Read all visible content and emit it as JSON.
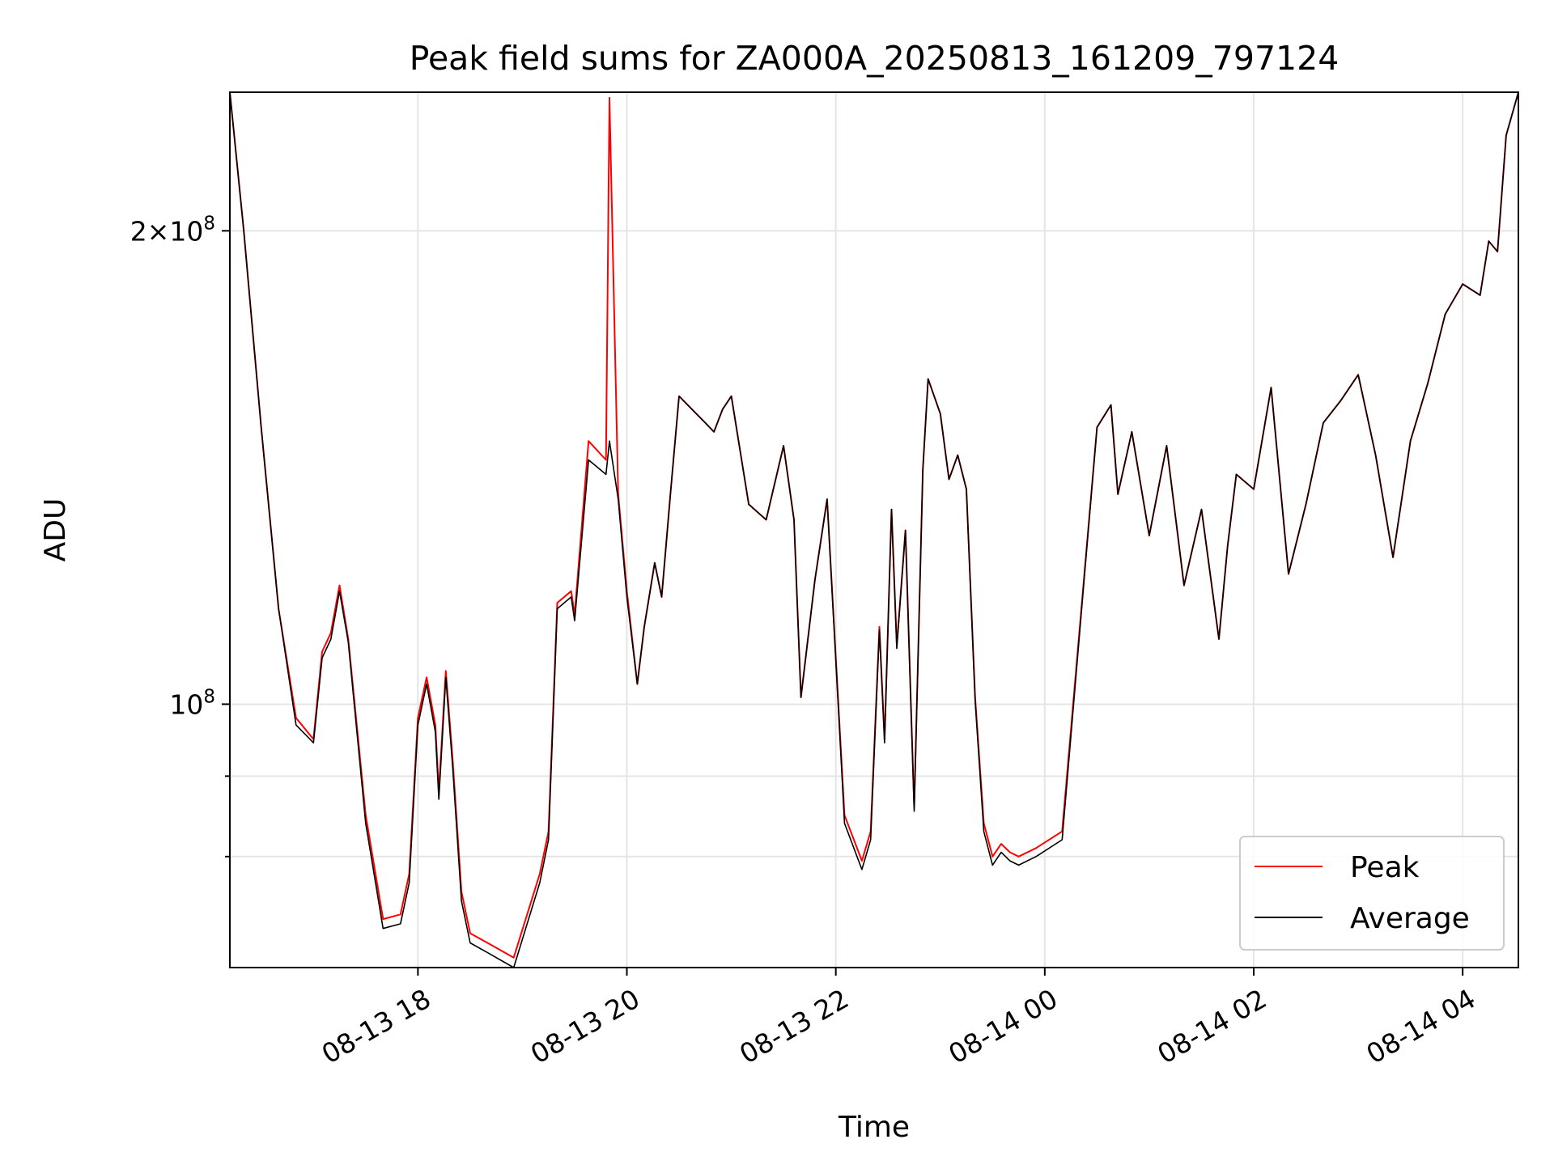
{
  "chart_data": {
    "type": "line",
    "title": "Peak field sums for ZA000A_20250813_161209_797124",
    "xlabel": "Time",
    "ylabel": "ADU",
    "yscale": "log",
    "ylim": [
      68000000,
      245000000
    ],
    "xlim": [
      "2025-08-13 16:12",
      "2025-08-14 04:32"
    ],
    "grid": true,
    "legend": "lower right",
    "x_ticks": [
      {
        "value": "2025-08-13 18:00",
        "label": "08-13 18"
      },
      {
        "value": "2025-08-13 20:00",
        "label": "08-13 20"
      },
      {
        "value": "2025-08-13 22:00",
        "label": "08-13 22"
      },
      {
        "value": "2025-08-14 00:00",
        "label": "08-14 00"
      },
      {
        "value": "2025-08-14 02:00",
        "label": "08-14 02"
      },
      {
        "value": "2025-08-14 04:00",
        "label": "08-14 04"
      }
    ],
    "y_major_ticks": [
      {
        "value": 100000000,
        "base": "10",
        "exp": "8",
        "coef": ""
      },
      {
        "value": 200000000,
        "base": "10",
        "exp": "8",
        "coef": "2"
      }
    ],
    "y_minor_ticks": [
      80000000,
      90000000
    ],
    "x": [
      "2025-08-13 16:12",
      "2025-08-13 16:20",
      "2025-08-13 16:30",
      "2025-08-13 16:40",
      "2025-08-13 16:50",
      "2025-08-13 17:00",
      "2025-08-13 17:05",
      "2025-08-13 17:10",
      "2025-08-13 17:15",
      "2025-08-13 17:20",
      "2025-08-13 17:30",
      "2025-08-13 17:40",
      "2025-08-13 17:50",
      "2025-08-13 17:55",
      "2025-08-13 18:00",
      "2025-08-13 18:05",
      "2025-08-13 18:10",
      "2025-08-13 18:12",
      "2025-08-13 18:16",
      "2025-08-13 18:20",
      "2025-08-13 18:25",
      "2025-08-13 18:30",
      "2025-08-13 18:40",
      "2025-08-13 18:55",
      "2025-08-13 19:10",
      "2025-08-13 19:15",
      "2025-08-13 19:20",
      "2025-08-13 19:28",
      "2025-08-13 19:30",
      "2025-08-13 19:38",
      "2025-08-13 19:48",
      "2025-08-13 19:50",
      "2025-08-13 19:55",
      "2025-08-13 20:00",
      "2025-08-13 20:06",
      "2025-08-13 20:10",
      "2025-08-13 20:16",
      "2025-08-13 20:20",
      "2025-08-13 20:25",
      "2025-08-13 20:30",
      "2025-08-13 20:45",
      "2025-08-13 20:50",
      "2025-08-13 20:55",
      "2025-08-13 21:00",
      "2025-08-13 21:10",
      "2025-08-13 21:20",
      "2025-08-13 21:30",
      "2025-08-13 21:36",
      "2025-08-13 21:40",
      "2025-08-13 21:48",
      "2025-08-13 21:55",
      "2025-08-13 22:00",
      "2025-08-13 22:05",
      "2025-08-13 22:15",
      "2025-08-13 22:20",
      "2025-08-13 22:25",
      "2025-08-13 22:28",
      "2025-08-13 22:32",
      "2025-08-13 22:35",
      "2025-08-13 22:40",
      "2025-08-13 22:45",
      "2025-08-13 22:50",
      "2025-08-13 22:53",
      "2025-08-13 23:00",
      "2025-08-13 23:05",
      "2025-08-13 23:10",
      "2025-08-13 23:15",
      "2025-08-13 23:20",
      "2025-08-13 23:25",
      "2025-08-13 23:30",
      "2025-08-13 23:35",
      "2025-08-13 23:40",
      "2025-08-13 23:45",
      "2025-08-13 23:55",
      "2025-08-14 00:10",
      "2025-08-14 00:30",
      "2025-08-14 00:38",
      "2025-08-14 00:42",
      "2025-08-14 00:50",
      "2025-08-14 01:00",
      "2025-08-14 01:10",
      "2025-08-14 01:20",
      "2025-08-14 01:30",
      "2025-08-14 01:40",
      "2025-08-14 01:45",
      "2025-08-14 01:50",
      "2025-08-14 02:00",
      "2025-08-14 02:10",
      "2025-08-14 02:20",
      "2025-08-14 02:30",
      "2025-08-14 02:40",
      "2025-08-14 02:50",
      "2025-08-14 03:00",
      "2025-08-14 03:10",
      "2025-08-14 03:20",
      "2025-08-14 03:30",
      "2025-08-14 03:40",
      "2025-08-14 03:50",
      "2025-08-14 04:00",
      "2025-08-14 04:10",
      "2025-08-14 04:15",
      "2025-08-14 04:20",
      "2025-08-14 04:25",
      "2025-08-14 04:32"
    ],
    "series": [
      {
        "name": "Peak",
        "color": "#ff0000",
        "values": [
          245000000,
          200000000,
          150000000,
          115000000,
          98000000,
          95000000,
          108000000,
          111000000,
          119000000,
          110000000,
          85000000,
          73000000,
          73500000,
          78000000,
          98000000,
          104000000,
          97000000,
          88000000,
          105000000,
          92000000,
          76000000,
          71500000,
          70500000,
          69000000,
          78000000,
          83000000,
          116000000,
          118000000,
          114000000,
          147000000,
          143000000,
          243000000,
          136000000,
          118000000,
          103000000,
          112000000,
          123000000,
          117000000,
          136000000,
          157000000,
          151000000,
          149000000,
          154000000,
          157000000,
          134000000,
          131000000,
          146000000,
          131000000,
          101000000,
          120000000,
          135000000,
          107000000,
          85000000,
          79500000,
          83000000,
          112000000,
          95000000,
          133000000,
          109000000,
          129000000,
          86000000,
          141000000,
          161000000,
          153000000,
          139000000,
          144000000,
          137000000,
          101000000,
          84000000,
          80000000,
          81500000,
          80500000,
          80000000,
          81000000,
          83000000,
          150000000,
          155000000,
          136000000,
          149000000,
          128000000,
          146000000,
          119000000,
          133000000,
          110000000,
          126000000,
          140000000,
          137000000,
          159000000,
          121000000,
          134000000,
          151000000,
          156000000,
          162000000,
          144000000,
          124000000,
          147000000,
          160000000,
          177000000,
          185000000,
          182000000,
          197000000,
          194000000,
          230000000,
          245000000
        ]
      },
      {
        "name": "Average",
        "color": "#000000",
        "values": [
          245000000,
          200000000,
          150000000,
          115000000,
          97000000,
          94500000,
          107000000,
          110000000,
          118000000,
          109500000,
          84000000,
          72000000,
          72500000,
          77000000,
          97000000,
          103000000,
          96000000,
          87000000,
          104000000,
          91000000,
          75000000,
          70500000,
          69500000,
          68000000,
          77000000,
          82000000,
          115000000,
          117000000,
          113000000,
          143000000,
          140000000,
          147000000,
          135000000,
          117000000,
          103000000,
          112000000,
          123000000,
          117000000,
          136000000,
          157000000,
          151000000,
          149000000,
          154000000,
          157000000,
          134000000,
          131000000,
          146000000,
          131000000,
          101000000,
          120000000,
          135000000,
          106500000,
          84000000,
          78500000,
          82000000,
          111500000,
          94500000,
          133000000,
          108500000,
          129000000,
          85500000,
          141000000,
          161000000,
          153000000,
          139000000,
          144000000,
          137000000,
          100500000,
          83000000,
          79000000,
          80500000,
          79500000,
          79000000,
          80000000,
          82000000,
          150000000,
          155000000,
          136000000,
          149000000,
          128000000,
          146000000,
          119000000,
          133000000,
          110000000,
          126000000,
          140000000,
          137000000,
          159000000,
          121000000,
          134000000,
          151000000,
          156000000,
          162000000,
          144000000,
          124000000,
          147000000,
          160000000,
          177000000,
          185000000,
          182000000,
          197000000,
          194000000,
          230000000,
          245000000
        ]
      }
    ]
  }
}
